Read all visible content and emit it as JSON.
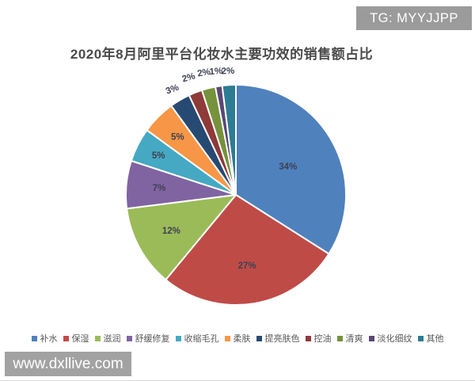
{
  "watermarks": {
    "top_right": "TG: MYYJJPP",
    "bottom_left": "www.dxllive.com"
  },
  "chart_data": {
    "type": "pie",
    "title": "2020年8月阿里平台化妆水主要功效的销售额占比",
    "categories": [
      "补水",
      "保湿",
      "滋润",
      "舒缓修复",
      "收缩毛孔",
      "柔肤",
      "提亮肤色",
      "控油",
      "清爽",
      "淡化细纹",
      "其他"
    ],
    "values": [
      34,
      27,
      12,
      7,
      5,
      5,
      3,
      2,
      2,
      1,
      2
    ],
    "labels": [
      "34%",
      "27%",
      "12%",
      "7%",
      "5%",
      "5%",
      "3%",
      "2%",
      "2%",
      "1%",
      "2%"
    ],
    "colors": [
      "#4F81BD",
      "#BF4B47",
      "#9BBB59",
      "#8064A2",
      "#45A9C3",
      "#F79646",
      "#274A72",
      "#8E3A38",
      "#76923C",
      "#5B4776",
      "#2E7C93"
    ],
    "start_angle_deg": 0,
    "direction": "clockwise",
    "legend_position": "bottom",
    "slice_border_color": "#ffffff",
    "label_radius_factors": [
      0.54,
      0.65,
      0.67,
      0.7,
      0.79,
      0.75,
      1.12,
      1.15,
      1.15,
      1.14,
      1.13
    ],
    "label_rotations": [
      0,
      0,
      0,
      0,
      0,
      0,
      -20,
      -16,
      -10,
      -5,
      -2
    ]
  }
}
